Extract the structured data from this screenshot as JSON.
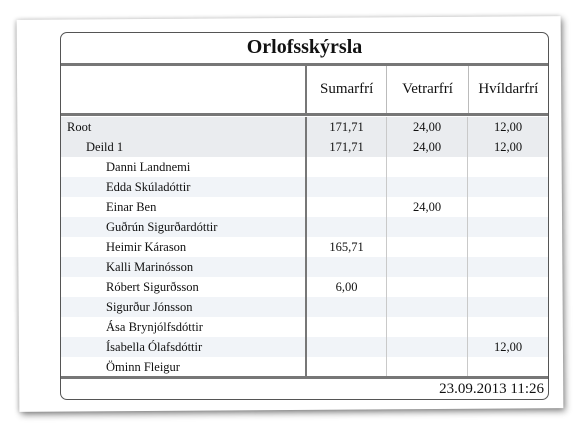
{
  "report": {
    "title": "Orlofsskýrsla",
    "columns": [
      "Sumarfrí",
      "Vetrarfrí",
      "Hvíldarfrí"
    ],
    "rows": [
      {
        "name": "Root",
        "level": 0,
        "sumarfri": "171,71",
        "vetrarfri": "24,00",
        "hvildarfri": "12,00"
      },
      {
        "name": "Deild 1",
        "level": 1,
        "sumarfri": "171,71",
        "vetrarfri": "24,00",
        "hvildarfri": "12,00"
      },
      {
        "name": "Danni Landnemi",
        "level": 2,
        "sumarfri": "",
        "vetrarfri": "",
        "hvildarfri": ""
      },
      {
        "name": "Edda Skúladóttir",
        "level": 2,
        "sumarfri": "",
        "vetrarfri": "",
        "hvildarfri": ""
      },
      {
        "name": "Einar Ben",
        "level": 2,
        "sumarfri": "",
        "vetrarfri": "24,00",
        "hvildarfri": ""
      },
      {
        "name": "Guðrún Sigurðardóttir",
        "level": 2,
        "sumarfri": "",
        "vetrarfri": "",
        "hvildarfri": ""
      },
      {
        "name": "Heimir Kárason",
        "level": 2,
        "sumarfri": "165,71",
        "vetrarfri": "",
        "hvildarfri": ""
      },
      {
        "name": "Kalli Marinósson",
        "level": 2,
        "sumarfri": "",
        "vetrarfri": "",
        "hvildarfri": ""
      },
      {
        "name": "Róbert Sigurðsson",
        "level": 2,
        "sumarfri": "6,00",
        "vetrarfri": "",
        "hvildarfri": ""
      },
      {
        "name": "Sigurður Jónsson",
        "level": 2,
        "sumarfri": "",
        "vetrarfri": "",
        "hvildarfri": ""
      },
      {
        "name": "Ása Brynjólfsdóttir",
        "level": 2,
        "sumarfri": "",
        "vetrarfri": "",
        "hvildarfri": ""
      },
      {
        "name": "Ísabella Ólafsdóttir",
        "level": 2,
        "sumarfri": "",
        "vetrarfri": "",
        "hvildarfri": "12,00"
      },
      {
        "name": "Öminn Fleigur",
        "level": 2,
        "sumarfri": "",
        "vetrarfri": "",
        "hvildarfri": ""
      }
    ],
    "timestamp": "23.09.2013 11:26"
  }
}
